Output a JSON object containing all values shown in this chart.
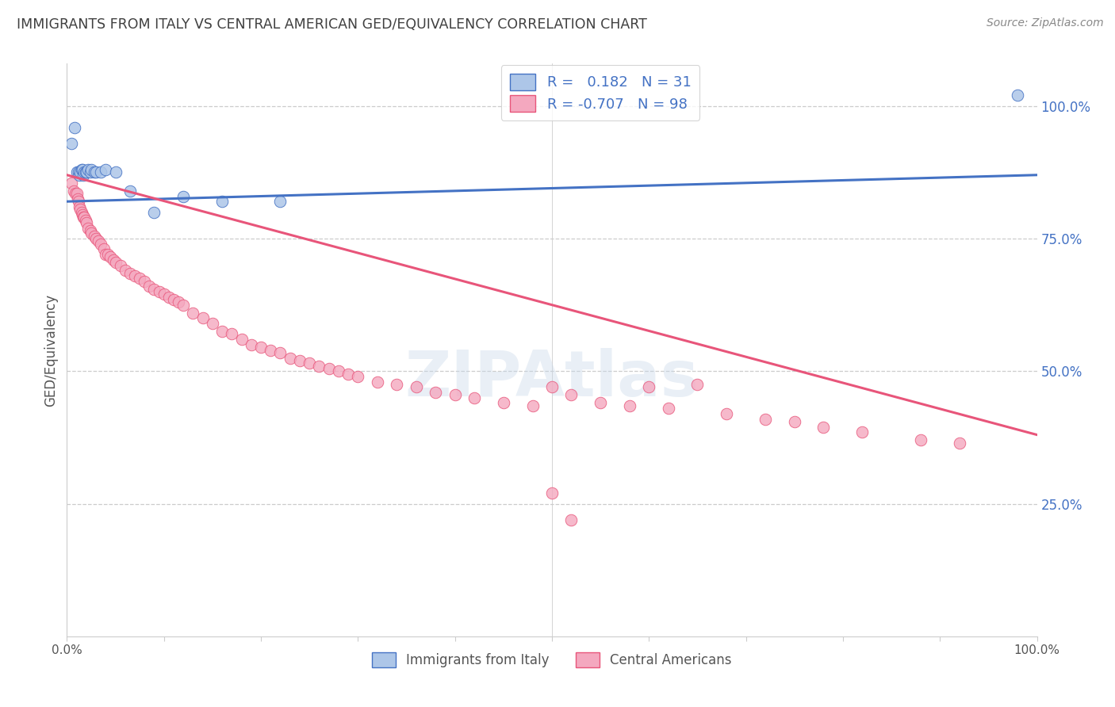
{
  "title": "IMMIGRANTS FROM ITALY VS CENTRAL AMERICAN GED/EQUIVALENCY CORRELATION CHART",
  "source": "Source: ZipAtlas.com",
  "ylabel": "GED/Equivalency",
  "watermark": "ZIPAtlas",
  "legend_italy": "Immigrants from Italy",
  "legend_central": "Central Americans",
  "R_italy": 0.182,
  "N_italy": 31,
  "R_central": -0.707,
  "N_central": 98,
  "italy_color": "#adc6e8",
  "central_color": "#f4a8bf",
  "italy_line_color": "#4472c4",
  "central_line_color": "#e8557a",
  "right_axis_color": "#4472c4",
  "title_color": "#404040",
  "source_color": "#888888",
  "xlim": [
    0.0,
    1.0
  ],
  "ylim": [
    0.0,
    1.08
  ],
  "italy_trend": [
    0.82,
    0.87
  ],
  "central_trend": [
    0.87,
    0.38
  ],
  "italy_x": [
    0.005,
    0.008,
    0.01,
    0.012,
    0.013,
    0.014,
    0.015,
    0.016,
    0.017,
    0.018,
    0.019,
    0.02,
    0.022,
    0.024,
    0.025,
    0.028,
    0.03,
    0.035,
    0.04,
    0.05,
    0.065,
    0.09,
    0.12,
    0.16,
    0.22,
    0.98
  ],
  "italy_y": [
    0.93,
    0.96,
    0.875,
    0.875,
    0.87,
    0.875,
    0.88,
    0.88,
    0.87,
    0.875,
    0.875,
    0.875,
    0.88,
    0.875,
    0.88,
    0.875,
    0.875,
    0.875,
    0.88,
    0.875,
    0.84,
    0.8,
    0.83,
    0.82,
    0.82,
    1.02
  ],
  "central_x": [
    0.005,
    0.007,
    0.009,
    0.01,
    0.011,
    0.012,
    0.013,
    0.014,
    0.015,
    0.016,
    0.017,
    0.018,
    0.019,
    0.02,
    0.022,
    0.024,
    0.025,
    0.028,
    0.03,
    0.032,
    0.035,
    0.038,
    0.04,
    0.042,
    0.045,
    0.048,
    0.05,
    0.055,
    0.06,
    0.065,
    0.07,
    0.075,
    0.08,
    0.085,
    0.09,
    0.095,
    0.1,
    0.105,
    0.11,
    0.115,
    0.12,
    0.13,
    0.14,
    0.15,
    0.16,
    0.17,
    0.18,
    0.19,
    0.2,
    0.21,
    0.22,
    0.23,
    0.24,
    0.25,
    0.26,
    0.27,
    0.28,
    0.29,
    0.3,
    0.32,
    0.34,
    0.36,
    0.38,
    0.4,
    0.42,
    0.45,
    0.48,
    0.5,
    0.52,
    0.55,
    0.58,
    0.6,
    0.62,
    0.65,
    0.68,
    0.72,
    0.75,
    0.78,
    0.82,
    0.88,
    0.92,
    0.5,
    0.52
  ],
  "central_y": [
    0.855,
    0.84,
    0.835,
    0.835,
    0.825,
    0.82,
    0.81,
    0.805,
    0.8,
    0.795,
    0.79,
    0.79,
    0.785,
    0.78,
    0.77,
    0.765,
    0.76,
    0.755,
    0.75,
    0.745,
    0.74,
    0.73,
    0.72,
    0.72,
    0.715,
    0.71,
    0.705,
    0.7,
    0.69,
    0.685,
    0.68,
    0.675,
    0.67,
    0.66,
    0.655,
    0.65,
    0.645,
    0.64,
    0.635,
    0.63,
    0.625,
    0.61,
    0.6,
    0.59,
    0.575,
    0.57,
    0.56,
    0.55,
    0.545,
    0.54,
    0.535,
    0.525,
    0.52,
    0.515,
    0.51,
    0.505,
    0.5,
    0.495,
    0.49,
    0.48,
    0.475,
    0.47,
    0.46,
    0.455,
    0.45,
    0.44,
    0.435,
    0.47,
    0.455,
    0.44,
    0.435,
    0.47,
    0.43,
    0.475,
    0.42,
    0.41,
    0.405,
    0.395,
    0.385,
    0.37,
    0.365,
    0.27,
    0.22
  ]
}
